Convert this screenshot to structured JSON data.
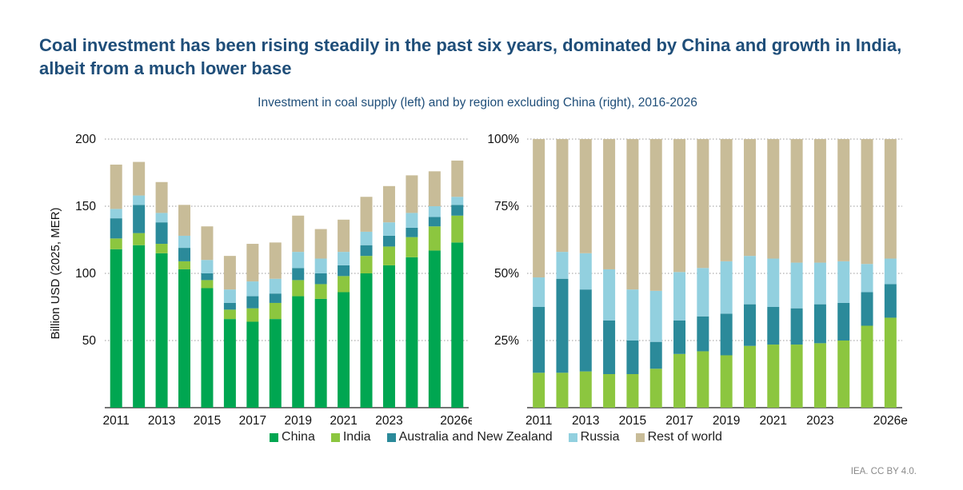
{
  "title": "Coal investment has been rising steadily in the past six years, dominated by China and growth in India, albeit from a much lower base",
  "subtitle": "Investment in coal supply (left) and by region excluding China (right), 2016-2026",
  "source": "IEA. CC BY 4.0.",
  "colors": {
    "China": "#00a651",
    "India": "#8cc63f",
    "Australia and New Zealand": "#2b8a9a",
    "Russia": "#92d0df",
    "Rest of world": "#c8bc98"
  },
  "legend": [
    "China",
    "India",
    "Australia and New Zealand",
    "Russia",
    "Rest of world"
  ],
  "chart_data": [
    {
      "type": "bar",
      "stacked": true,
      "categories": [
        "2011",
        "2012",
        "2013",
        "2014",
        "2015",
        "2016",
        "2017",
        "2018",
        "2019",
        "2020",
        "2021",
        "2022",
        "2023",
        "2024",
        "2025",
        "2026e"
      ],
      "tick_labels": [
        "2011",
        "",
        "2013",
        "",
        "2015",
        "",
        "2017",
        "",
        "2019",
        "",
        "2021",
        "",
        "2023",
        "",
        "",
        "2026e"
      ],
      "ylabel": "Billion USD (2025, MER)",
      "ylim": [
        0,
        200
      ],
      "yticks": [
        50,
        100,
        150,
        200
      ],
      "grid": true,
      "series": [
        {
          "name": "China",
          "values": [
            118,
            121,
            115,
            103,
            89,
            66,
            64,
            66,
            83,
            81,
            86,
            100,
            106,
            112,
            117,
            123
          ]
        },
        {
          "name": "India",
          "values": [
            8,
            9,
            7,
            6,
            6,
            7,
            10,
            12,
            12,
            11,
            12,
            13,
            14,
            15,
            18,
            20
          ]
        },
        {
          "name": "Australia and New Zealand",
          "values": [
            15,
            21,
            16,
            10,
            5,
            5,
            9,
            7,
            9,
            8,
            8,
            8,
            8,
            7,
            7,
            8
          ]
        },
        {
          "name": "Russia",
          "values": [
            7,
            7,
            7,
            9,
            10,
            10,
            11,
            11,
            12,
            11,
            10,
            10,
            10,
            11,
            8,
            6
          ]
        },
        {
          "name": "Rest of world",
          "values": [
            33,
            25,
            23,
            23,
            25,
            25,
            28,
            27,
            27,
            22,
            24,
            26,
            27,
            28,
            26,
            27
          ]
        }
      ]
    },
    {
      "type": "bar",
      "stacked": true,
      "percent": true,
      "categories": [
        "2011",
        "2012",
        "2013",
        "2014",
        "2015",
        "2016",
        "2017",
        "2018",
        "2019",
        "2020",
        "2021",
        "2022",
        "2023",
        "2024",
        "2025",
        "2026e"
      ],
      "tick_labels": [
        "2011",
        "",
        "2013",
        "",
        "2015",
        "",
        "2017",
        "",
        "2019",
        "",
        "2021",
        "",
        "2023",
        "",
        "",
        "2026e"
      ],
      "ylim": [
        0,
        100
      ],
      "yticks": [
        "25%",
        "50%",
        "75%",
        "100%"
      ],
      "ytick_values": [
        25,
        50,
        75,
        100
      ],
      "grid": true,
      "series": [
        {
          "name": "India",
          "values": [
            13,
            13,
            13.5,
            12.5,
            12.5,
            14.5,
            20,
            21,
            19.5,
            23,
            23.5,
            23.5,
            24,
            25,
            30.5,
            33.5
          ]
        },
        {
          "name": "Australia and New Zealand",
          "values": [
            24.5,
            35,
            30.5,
            20,
            12.5,
            10,
            12.5,
            13,
            15.5,
            15.5,
            14,
            13.5,
            14.5,
            14,
            12.5,
            12.5
          ]
        },
        {
          "name": "Russia",
          "values": [
            11,
            10,
            13.5,
            19,
            19,
            19,
            18,
            18,
            19.5,
            18,
            18,
            17,
            15.5,
            15.5,
            10.5,
            9.5
          ]
        },
        {
          "name": "Rest of world",
          "values": [
            51.5,
            42,
            42.5,
            48.5,
            56,
            56.5,
            49.5,
            48,
            45.5,
            43.5,
            44.5,
            46,
            46,
            45.5,
            46.5,
            44.5
          ]
        }
      ]
    }
  ]
}
